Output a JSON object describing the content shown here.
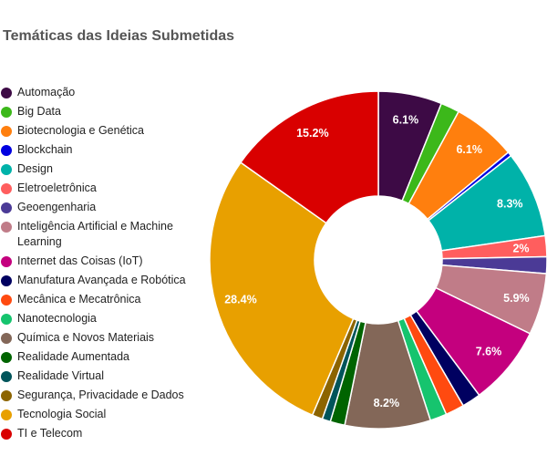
{
  "chart_data": {
    "type": "pie",
    "donut": true,
    "title": "Temáticas das Ideias Submetidas",
    "legend_position": "left",
    "slices": [
      {
        "label": "Automação",
        "value": 6.1,
        "color": "#3d0a45"
      },
      {
        "label": "Big Data",
        "value": 1.8,
        "color": "#3cb81a"
      },
      {
        "label": "Biotecnologia e Genética",
        "value": 6.1,
        "color": "#ff7f0e"
      },
      {
        "label": "Blockchain",
        "value": 0.4,
        "color": "#0000e0"
      },
      {
        "label": "Design",
        "value": 8.3,
        "color": "#00b2a9"
      },
      {
        "label": "Eletroeletrônica",
        "value": 2,
        "color": "#ff5e5e"
      },
      {
        "label": "Geoengenharia",
        "value": 1.6,
        "color": "#4b3a96"
      },
      {
        "label": "Inteligência Artificial e Machine Learning",
        "value": 5.9,
        "color": "#c07c88"
      },
      {
        "label": "Internet das Coisas (IoT)",
        "value": 7.6,
        "color": "#c4007e"
      },
      {
        "label": "Manufatura Avançada e Robótica",
        "value": 1.8,
        "color": "#000060"
      },
      {
        "label": "Mecânica e Mecatrônica",
        "value": 1.8,
        "color": "#ff4a10"
      },
      {
        "label": "Nanotecnologia",
        "value": 1.6,
        "color": "#16c46e"
      },
      {
        "label": "Química e Novos Materiais",
        "value": 8.2,
        "color": "#836758"
      },
      {
        "label": "Realidade Aumentada",
        "value": 1.4,
        "color": "#006400"
      },
      {
        "label": "Realidade Virtual",
        "value": 0.8,
        "color": "#00545a"
      },
      {
        "label": "Segurança, Privacidade e Dados",
        "value": 1.0,
        "color": "#8c6400"
      },
      {
        "label": "Tecnologia Social",
        "value": 28.4,
        "color": "#e8a000"
      },
      {
        "label": "TI e Telecom",
        "value": 15.2,
        "color": "#d90000"
      }
    ],
    "data_labels": [
      "6.1%",
      "",
      "6.1%",
      "",
      "8.3%",
      "2%",
      "",
      "5.9%",
      "7.6%",
      "",
      "",
      "",
      "8.2%",
      "",
      "",
      "",
      "28.4%",
      "15.2%"
    ]
  }
}
